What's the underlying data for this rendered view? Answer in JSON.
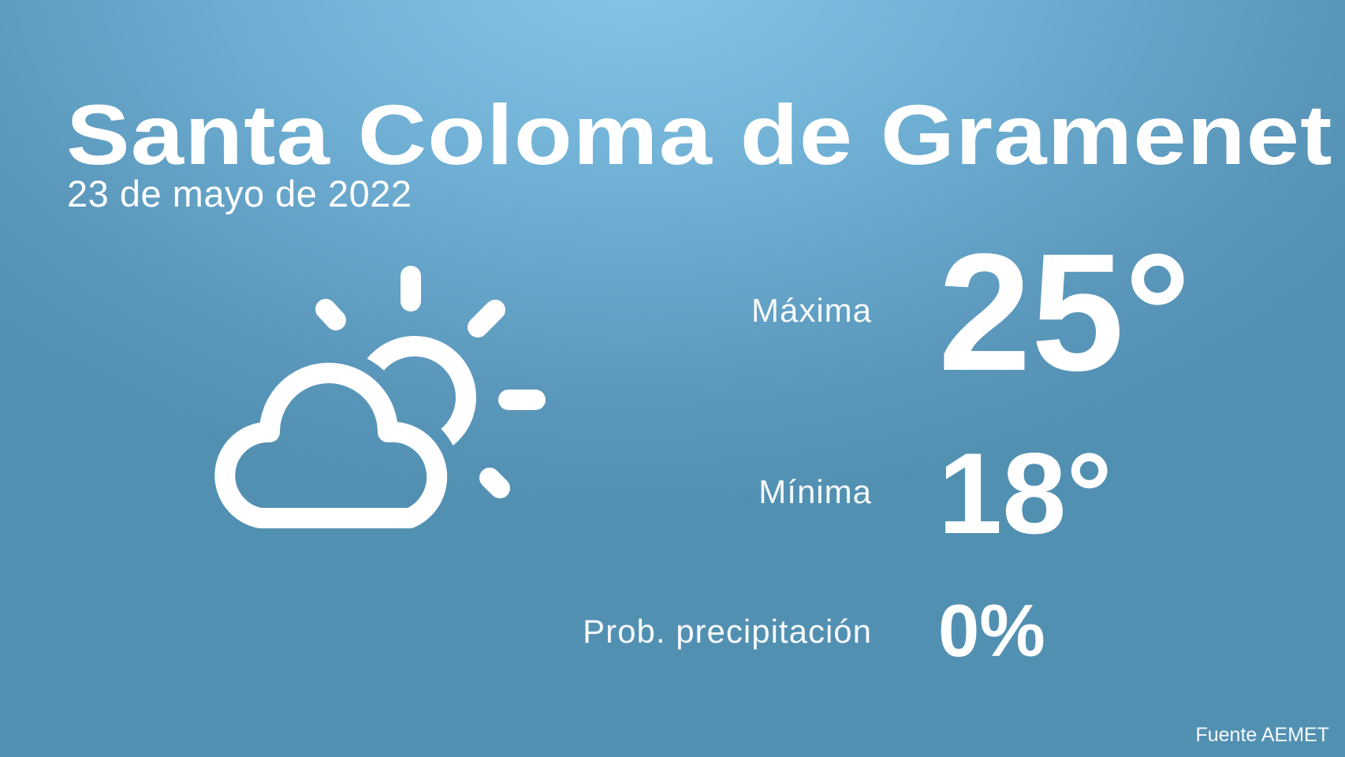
{
  "city": "Santa Coloma de Gramenet",
  "date": "23 de mayo de 2022",
  "icon": "partly-cloudy-icon",
  "max": {
    "label": "Máxima",
    "value": "25°"
  },
  "min": {
    "label": "Mínima",
    "value": "18°"
  },
  "precip": {
    "label": "Prob. precipitación",
    "value": "0%"
  },
  "source": "Fuente AEMET",
  "colors": {
    "background_top": "#86c6e8",
    "background_bottom": "#5290b2",
    "text": "#ffffff"
  }
}
